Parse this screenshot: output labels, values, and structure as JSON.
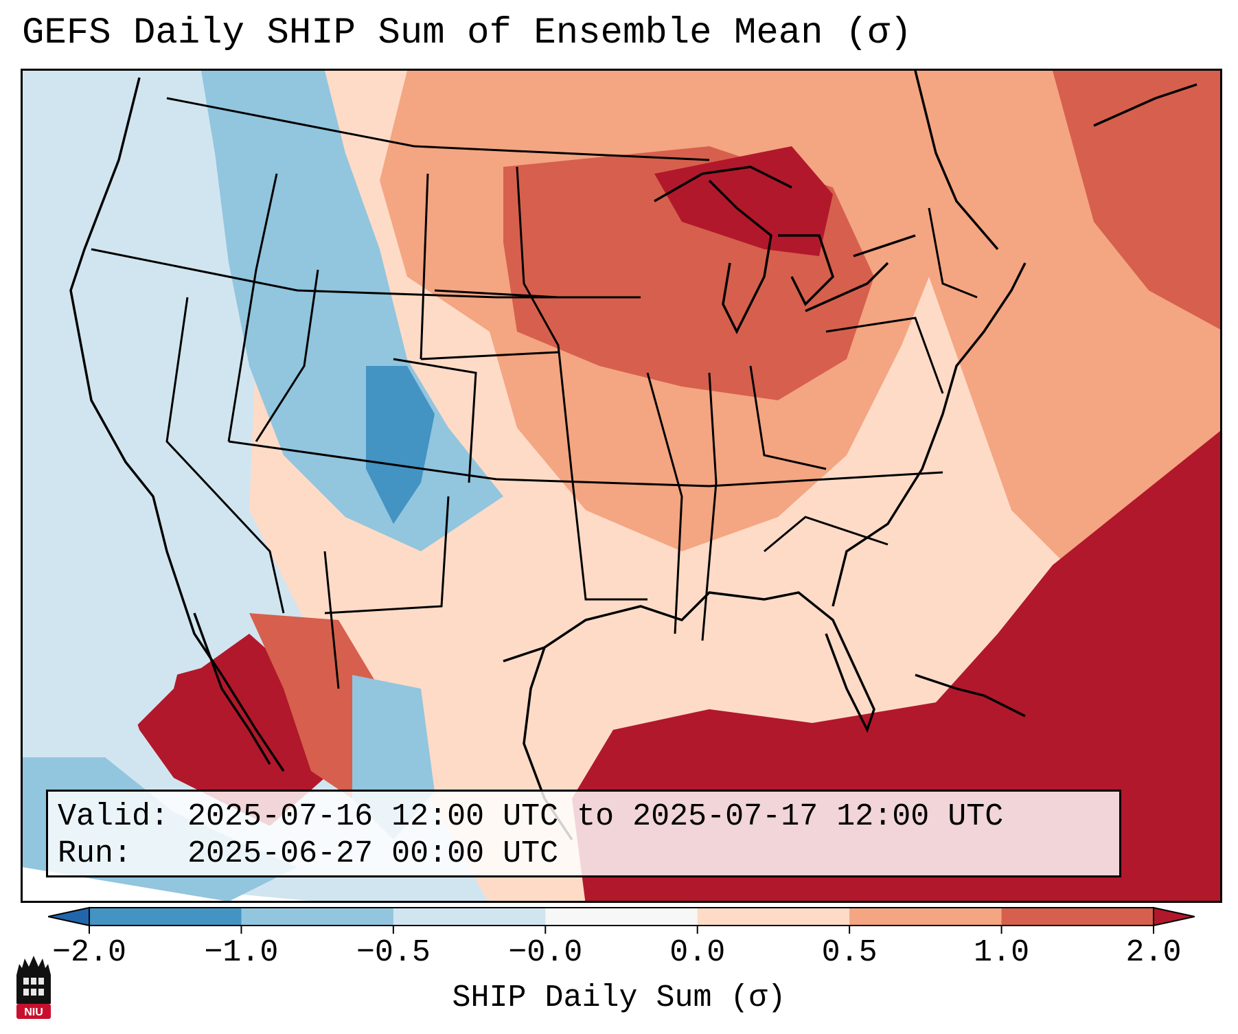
{
  "title": "GEFS Daily SHIP Sum of Ensemble Mean (σ)",
  "info": {
    "valid_label": "Valid:",
    "valid_value": "2025-07-16 12:00 UTC to 2025-07-17 12:00 UTC",
    "run_label": "Run:",
    "run_value": "2025-06-27 00:00 UTC"
  },
  "colorbar": {
    "label": "SHIP Daily Sum (σ)",
    "ticks": [
      "−2.0",
      "−1.0",
      "−0.5",
      "−0.0",
      "0.0",
      "0.5",
      "1.0",
      "2.0"
    ],
    "bins": [
      {
        "range": "below −2.0",
        "color": "#2166ac"
      },
      {
        "range": "−2.0 to −1.0",
        "color": "#4393c3"
      },
      {
        "range": "−1.0 to −0.5",
        "color": "#92c5de"
      },
      {
        "range": "−0.5 to −0.0",
        "color": "#d1e5f0"
      },
      {
        "range": "−0.0 to 0.0",
        "color": "#f7f7f7"
      },
      {
        "range": "0.0 to 0.5",
        "color": "#fddbc7"
      },
      {
        "range": "0.5 to 1.0",
        "color": "#f4a582"
      },
      {
        "range": "1.0 to 2.0",
        "color": "#d6604d"
      },
      {
        "range": "above 2.0",
        "color": "#b2182b"
      }
    ]
  },
  "logo": {
    "text": "NIU",
    "color": "#c8102e"
  }
}
